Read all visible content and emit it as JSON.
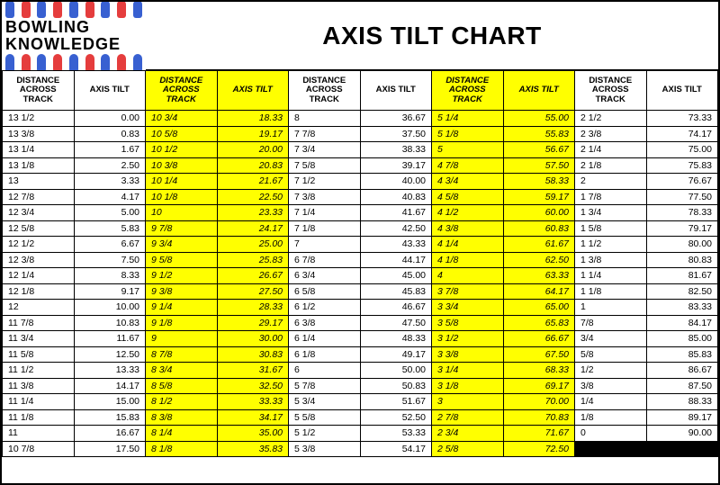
{
  "logo": {
    "line1": "BOWLING",
    "line2": "KNOWLEDGE",
    "pin_colors": [
      "#1544c9",
      "#e01b1b",
      "#1544c9",
      "#e01b1b",
      "#1544c9",
      "#e01b1b",
      "#1544c9",
      "#e01b1b",
      "#1544c9"
    ]
  },
  "title": "AXIS TILT CHART",
  "colors": {
    "highlight": "#ffff00",
    "border": "#000000",
    "bg": "#ffffff",
    "black": "#000000"
  },
  "fonts": {
    "title_pt": 28,
    "header_pt": 9.5,
    "cell_pt": 10.5
  },
  "headers": {
    "dist": "DISTANCE ACROSS TRACK",
    "tilt": "AXIS TILT"
  },
  "column_pairs": 5,
  "highlight_pairs": [
    1,
    3
  ],
  "rows": [
    [
      "13 1/2",
      "0.00",
      "10 3/4",
      "18.33",
      "8",
      "36.67",
      "5 1/4",
      "55.00",
      "2 1/2",
      "73.33"
    ],
    [
      "13 3/8",
      "0.83",
      "10 5/8",
      "19.17",
      "7 7/8",
      "37.50",
      "5 1/8",
      "55.83",
      "2 3/8",
      "74.17"
    ],
    [
      "13 1/4",
      "1.67",
      "10 1/2",
      "20.00",
      "7 3/4",
      "38.33",
      "5",
      "56.67",
      "2 1/4",
      "75.00"
    ],
    [
      "13 1/8",
      "2.50",
      "10 3/8",
      "20.83",
      "7 5/8",
      "39.17",
      "4 7/8",
      "57.50",
      "2 1/8",
      "75.83"
    ],
    [
      "13",
      "3.33",
      "10 1/4",
      "21.67",
      "7 1/2",
      "40.00",
      "4 3/4",
      "58.33",
      "2",
      "76.67"
    ],
    [
      "12 7/8",
      "4.17",
      "10 1/8",
      "22.50",
      "7 3/8",
      "40.83",
      "4 5/8",
      "59.17",
      "1 7/8",
      "77.50"
    ],
    [
      "12 3/4",
      "5.00",
      "10",
      "23.33",
      "7 1/4",
      "41.67",
      "4 1/2",
      "60.00",
      "1 3/4",
      "78.33"
    ],
    [
      "12 5/8",
      "5.83",
      "9 7/8",
      "24.17",
      "7 1/8",
      "42.50",
      "4 3/8",
      "60.83",
      "1 5/8",
      "79.17"
    ],
    [
      "12 1/2",
      "6.67",
      "9 3/4",
      "25.00",
      "7",
      "43.33",
      "4 1/4",
      "61.67",
      "1 1/2",
      "80.00"
    ],
    [
      "12 3/8",
      "7.50",
      "9 5/8",
      "25.83",
      "6 7/8",
      "44.17",
      "4 1/8",
      "62.50",
      "1 3/8",
      "80.83"
    ],
    [
      "12 1/4",
      "8.33",
      "9 1/2",
      "26.67",
      "6 3/4",
      "45.00",
      "4",
      "63.33",
      "1 1/4",
      "81.67"
    ],
    [
      "12 1/8",
      "9.17",
      "9 3/8",
      "27.50",
      "6 5/8",
      "45.83",
      "3 7/8",
      "64.17",
      "1 1/8",
      "82.50"
    ],
    [
      "12",
      "10.00",
      "9 1/4",
      "28.33",
      "6 1/2",
      "46.67",
      "3 3/4",
      "65.00",
      "1",
      "83.33"
    ],
    [
      "11 7/8",
      "10.83",
      "9 1/8",
      "29.17",
      "6 3/8",
      "47.50",
      "3 5/8",
      "65.83",
      "7/8",
      "84.17"
    ],
    [
      "11 3/4",
      "11.67",
      "9",
      "30.00",
      "6 1/4",
      "48.33",
      "3 1/2",
      "66.67",
      "3/4",
      "85.00"
    ],
    [
      "11 5/8",
      "12.50",
      "8 7/8",
      "30.83",
      "6 1/8",
      "49.17",
      "3 3/8",
      "67.50",
      "5/8",
      "85.83"
    ],
    [
      "11 1/2",
      "13.33",
      "8 3/4",
      "31.67",
      "6",
      "50.00",
      "3 1/4",
      "68.33",
      "1/2",
      "86.67"
    ],
    [
      "11 3/8",
      "14.17",
      "8 5/8",
      "32.50",
      "5 7/8",
      "50.83",
      "3 1/8",
      "69.17",
      "3/8",
      "87.50"
    ],
    [
      "11 1/4",
      "15.00",
      "8 1/2",
      "33.33",
      "5 3/4",
      "51.67",
      "3",
      "70.00",
      "1/4",
      "88.33"
    ],
    [
      "11 1/8",
      "15.83",
      "8 3/8",
      "34.17",
      "5 5/8",
      "52.50",
      "2 7/8",
      "70.83",
      "1/8",
      "89.17"
    ],
    [
      "11",
      "16.67",
      "8 1/4",
      "35.00",
      "5 1/2",
      "53.33",
      "2 3/4",
      "71.67",
      "0",
      "90.00"
    ],
    [
      "10 7/8",
      "17.50",
      "8 1/8",
      "35.83",
      "5 3/8",
      "54.17",
      "2 5/8",
      "72.50",
      "__BLACK__",
      "__BLACK__"
    ]
  ]
}
